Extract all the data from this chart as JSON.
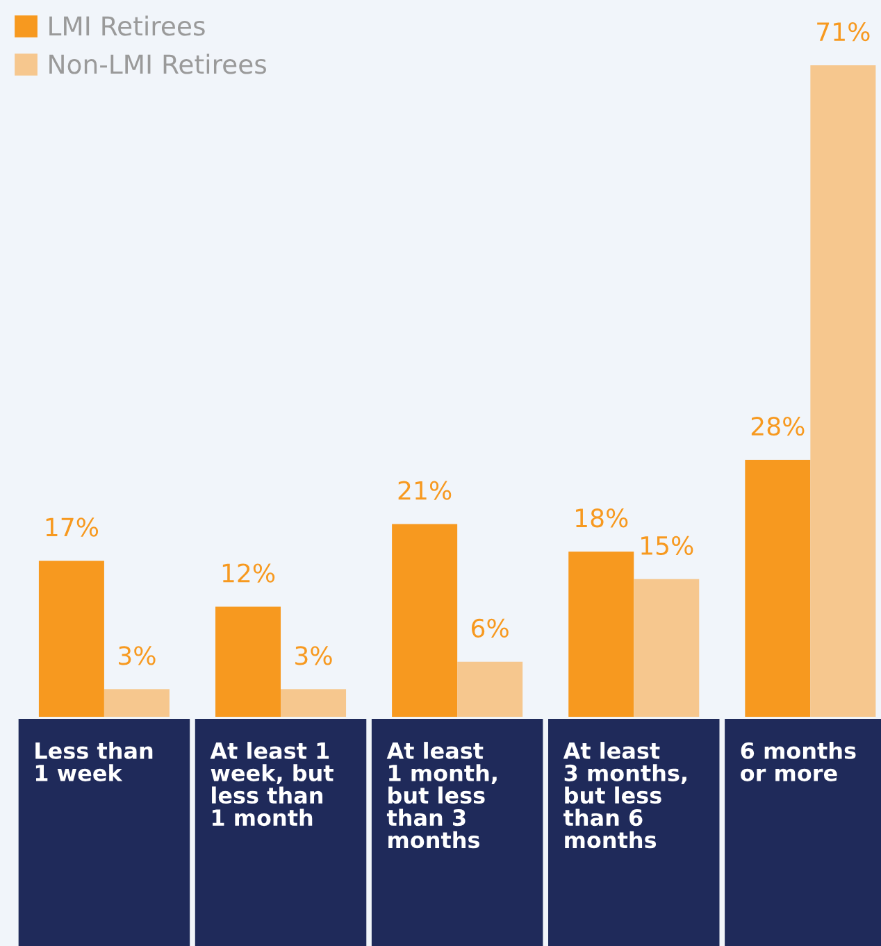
{
  "chart_data": {
    "type": "bar",
    "categories": [
      "Less than\n1 week",
      "At least 1\nweek, but\nless than\n1 month",
      "At least\n1 month,\nbut less\nthan 3\nmonths",
      "At least\n3 months,\nbut less\nthan 6\nmonths",
      "6 months\nor more"
    ],
    "series": [
      {
        "name": "LMI Retirees",
        "color": "#f7991f",
        "values": [
          17,
          12,
          21,
          18,
          28
        ],
        "value_labels": [
          "17%",
          "12%",
          "21%",
          "18%",
          "28%"
        ]
      },
      {
        "name": "Non-LMI Retirees",
        "color": "#f6c78e",
        "values": [
          3,
          3,
          6,
          15,
          71
        ],
        "value_labels": [
          "3%",
          "3%",
          "6%",
          "15%",
          "71%"
        ]
      }
    ],
    "legend": "top left"
  }
}
